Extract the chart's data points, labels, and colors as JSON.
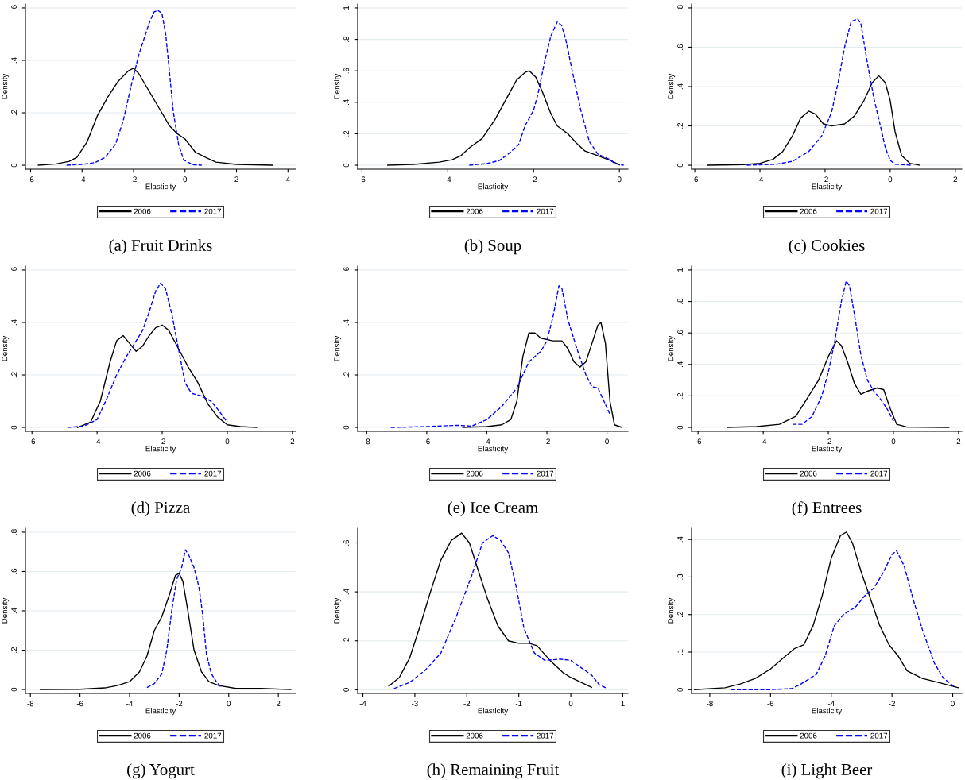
{
  "chart_data": [
    {
      "type": "line",
      "title": "(a) Fruit Drinks",
      "xlabel": "Elasticity",
      "ylabel": "Density",
      "grid": "y",
      "legend": "bottom",
      "xlim": [
        -6.2,
        4.3
      ],
      "xticks": [
        -6,
        -4,
        -2,
        0,
        2,
        4
      ],
      "ylim": [
        -0.015,
        0.615
      ],
      "yticks": [
        0,
        {
          "value": 0.2,
          "label": ".2"
        },
        {
          "value": 0.4,
          "label": ".4"
        },
        {
          "value": 0.6,
          "label": ".6"
        }
      ],
      "series": [
        {
          "name": "2006",
          "color": "#000000",
          "line_style": "solid",
          "x": [
            -5.7,
            -5,
            -4.5,
            -4.2,
            -3.8,
            -3.4,
            -3,
            -2.6,
            -2.4,
            -2.2,
            -2.0,
            -1.8,
            -1.5,
            -1.2,
            -0.9,
            -0.6,
            -0.3,
            0,
            0.4,
            0.8,
            1.2,
            2,
            3.4
          ],
          "values": [
            0,
            0.005,
            0.015,
            0.03,
            0.09,
            0.19,
            0.26,
            0.32,
            0.34,
            0.36,
            0.37,
            0.35,
            0.3,
            0.25,
            0.2,
            0.15,
            0.12,
            0.1,
            0.05,
            0.03,
            0.012,
            0.003,
            0
          ]
        },
        {
          "name": "2017",
          "color": "#0000ff",
          "line_style": "dashed",
          "x": [
            -4.6,
            -4,
            -3.5,
            -3.1,
            -2.7,
            -2.4,
            -2.1,
            -1.8,
            -1.6,
            -1.4,
            -1.2,
            -1.05,
            -0.9,
            -0.75,
            -0.6,
            -0.45,
            -0.25,
            -0.05,
            0.3,
            0.65
          ],
          "values": [
            0,
            0.003,
            0.01,
            0.03,
            0.08,
            0.17,
            0.3,
            0.42,
            0.48,
            0.54,
            0.585,
            0.59,
            0.58,
            0.5,
            0.35,
            0.2,
            0.08,
            0.02,
            0.002,
            0
          ]
        }
      ]
    },
    {
      "type": "line",
      "title": "(b) Soup",
      "xlabel": "Elasticity",
      "ylabel": "Density",
      "grid": "y",
      "legend": "bottom",
      "xlim": [
        -6.1,
        0.2
      ],
      "xticks": [
        -6,
        -4,
        -2,
        0
      ],
      "ylim": [
        -0.025,
        1.025
      ],
      "yticks": [
        0,
        {
          "value": 0.2,
          "label": ".2"
        },
        {
          "value": 0.4,
          "label": ".4"
        },
        {
          "value": 0.6,
          "label": ".6"
        },
        {
          "value": 0.8,
          "label": ".8"
        },
        1
      ],
      "series": [
        {
          "name": "2006",
          "color": "#000000",
          "line_style": "solid",
          "x": [
            -5.4,
            -4.8,
            -4.2,
            -3.9,
            -3.7,
            -3.5,
            -3.2,
            -2.9,
            -2.6,
            -2.4,
            -2.2,
            -2.1,
            -1.95,
            -1.8,
            -1.6,
            -1.45,
            -1.2,
            -1.0,
            -0.8,
            -0.5,
            -0.2,
            0
          ],
          "values": [
            0,
            0.005,
            0.02,
            0.035,
            0.06,
            0.11,
            0.17,
            0.29,
            0.44,
            0.54,
            0.59,
            0.6,
            0.56,
            0.47,
            0.33,
            0.25,
            0.2,
            0.14,
            0.09,
            0.06,
            0.03,
            0.003
          ]
        },
        {
          "name": "2017",
          "color": "#0000ff",
          "line_style": "dashed",
          "x": [
            -3.5,
            -3.1,
            -2.8,
            -2.6,
            -2.35,
            -2.2,
            -2.0,
            -1.9,
            -1.75,
            -1.6,
            -1.45,
            -1.35,
            -1.25,
            -1.1,
            -0.9,
            -0.7,
            -0.5,
            -0.25,
            -0.1,
            0.1
          ],
          "values": [
            0,
            0.01,
            0.03,
            0.07,
            0.13,
            0.25,
            0.35,
            0.45,
            0.65,
            0.82,
            0.91,
            0.89,
            0.8,
            0.6,
            0.35,
            0.15,
            0.07,
            0.04,
            0.01,
            0
          ]
        }
      ]
    },
    {
      "type": "line",
      "title": "(c) Cookies",
      "xlabel": "Elasticity",
      "ylabel": "Density",
      "grid": "y",
      "legend": "bottom",
      "xlim": [
        -6.1,
        2.2
      ],
      "xticks": [
        -6,
        -4,
        -2,
        0,
        2
      ],
      "ylim": [
        -0.02,
        0.82
      ],
      "yticks": [
        0,
        {
          "value": 0.2,
          "label": ".2"
        },
        {
          "value": 0.4,
          "label": ".4"
        },
        {
          "value": 0.6,
          "label": ".6"
        },
        {
          "value": 0.8,
          "label": ".8"
        }
      ],
      "series": [
        {
          "name": "2006",
          "color": "#000000",
          "line_style": "solid",
          "x": [
            -5.6,
            -4.5,
            -4,
            -3.6,
            -3.3,
            -3,
            -2.75,
            -2.5,
            -2.3,
            -2.05,
            -1.8,
            -1.4,
            -1.1,
            -0.8,
            -0.55,
            -0.35,
            -0.15,
            0,
            0.15,
            0.35,
            0.6,
            0.9
          ],
          "values": [
            0,
            0.003,
            0.01,
            0.03,
            0.07,
            0.15,
            0.24,
            0.275,
            0.26,
            0.21,
            0.2,
            0.21,
            0.25,
            0.33,
            0.42,
            0.455,
            0.42,
            0.33,
            0.17,
            0.05,
            0.01,
            0
          ]
        },
        {
          "name": "2017",
          "color": "#0000ff",
          "line_style": "dashed",
          "x": [
            -4.4,
            -3.5,
            -3,
            -2.5,
            -2.1,
            -1.8,
            -1.6,
            -1.4,
            -1.2,
            -1.0,
            -0.9,
            -0.7,
            -0.5,
            -0.3,
            -0.15,
            0,
            0.15,
            0.65
          ],
          "values": [
            0,
            0.005,
            0.02,
            0.07,
            0.15,
            0.27,
            0.42,
            0.6,
            0.73,
            0.745,
            0.72,
            0.52,
            0.34,
            0.2,
            0.09,
            0.025,
            0.005,
            0
          ]
        }
      ]
    },
    {
      "type": "line",
      "title": "(d) Pizza",
      "xlabel": "Elasticity",
      "ylabel": "Density",
      "grid": "y",
      "legend": "bottom",
      "xlim": [
        -6.2,
        2.1
      ],
      "xticks": [
        -6,
        -4,
        -2,
        0,
        2
      ],
      "ylim": [
        -0.015,
        0.615
      ],
      "yticks": [
        0,
        {
          "value": 0.2,
          "label": ".2"
        },
        {
          "value": 0.4,
          "label": ".4"
        },
        {
          "value": 0.6,
          "label": ".6"
        }
      ],
      "series": [
        {
          "name": "2006",
          "color": "#000000",
          "line_style": "solid",
          "x": [
            -4.6,
            -4.2,
            -3.9,
            -3.6,
            -3.4,
            -3.2,
            -3.0,
            -2.8,
            -2.6,
            -2.4,
            -2.2,
            -2.0,
            -1.8,
            -1.5,
            -1.2,
            -0.9,
            -0.6,
            -0.3,
            0,
            0.4,
            0.9
          ],
          "values": [
            0,
            0.02,
            0.1,
            0.25,
            0.33,
            0.35,
            0.32,
            0.29,
            0.31,
            0.35,
            0.38,
            0.39,
            0.37,
            0.3,
            0.23,
            0.17,
            0.09,
            0.04,
            0.01,
            0.003,
            0
          ]
        },
        {
          "name": "2017",
          "color": "#0000ff",
          "line_style": "dashed",
          "x": [
            -4.9,
            -4.4,
            -4.0,
            -3.7,
            -3.4,
            -3.1,
            -2.8,
            -2.6,
            -2.4,
            -2.2,
            -2.05,
            -1.9,
            -1.7,
            -1.5,
            -1.3,
            -1.1,
            -0.8,
            -0.5,
            -0.3,
            0
          ],
          "values": [
            0,
            0.005,
            0.03,
            0.11,
            0.2,
            0.27,
            0.33,
            0.37,
            0.44,
            0.52,
            0.55,
            0.53,
            0.43,
            0.3,
            0.17,
            0.13,
            0.12,
            0.1,
            0.07,
            0.02
          ]
        }
      ]
    },
    {
      "type": "line",
      "title": "(e) Ice Cream",
      "xlabel": "Elasticity",
      "ylabel": "Density",
      "grid": "y",
      "legend": "bottom",
      "xlim": [
        -8.3,
        0.7
      ],
      "xticks": [
        -8,
        -6,
        -4,
        -2,
        0
      ],
      "ylim": [
        -0.015,
        0.615
      ],
      "yticks": [
        0,
        {
          "value": 0.2,
          "label": ".2"
        },
        {
          "value": 0.4,
          "label": ".4"
        },
        {
          "value": 0.6,
          "label": ".6"
        }
      ],
      "series": [
        {
          "name": "2006",
          "color": "#000000",
          "line_style": "solid",
          "x": [
            -4.8,
            -4.0,
            -3.5,
            -3.2,
            -3.0,
            -2.8,
            -2.6,
            -2.4,
            -2.2,
            -1.8,
            -1.5,
            -1.3,
            -1.1,
            -0.9,
            -0.7,
            -0.5,
            -0.3,
            -0.2,
            -0.05,
            0.1,
            0.25,
            0.5
          ],
          "values": [
            0,
            0.003,
            0.01,
            0.03,
            0.1,
            0.27,
            0.36,
            0.36,
            0.34,
            0.33,
            0.33,
            0.3,
            0.25,
            0.23,
            0.25,
            0.32,
            0.39,
            0.4,
            0.32,
            0.1,
            0.01,
            0
          ]
        },
        {
          "name": "2017",
          "color": "#0000ff",
          "line_style": "dashed",
          "x": [
            -7.2,
            -6,
            -5,
            -4.5,
            -4,
            -3.5,
            -3,
            -2.6,
            -2.2,
            -2,
            -1.8,
            -1.6,
            -1.5,
            -1.3,
            -1.0,
            -0.7,
            -0.5,
            -0.3,
            -0.1,
            0.1
          ],
          "values": [
            0,
            0.003,
            0.008,
            0.005,
            0.03,
            0.08,
            0.15,
            0.25,
            0.29,
            0.33,
            0.42,
            0.54,
            0.53,
            0.41,
            0.3,
            0.2,
            0.155,
            0.15,
            0.1,
            0.05
          ]
        }
      ]
    },
    {
      "type": "line",
      "title": "(f) Entrees",
      "xlabel": "Elasticity",
      "ylabel": "Density",
      "grid": "y",
      "legend": "bottom",
      "xlim": [
        -6.2,
        2.1
      ],
      "xticks": [
        -6,
        -4,
        -2,
        0,
        2
      ],
      "ylim": [
        -0.025,
        1.025
      ],
      "yticks": [
        0,
        {
          "value": 0.2,
          "label": ".2"
        },
        {
          "value": 0.4,
          "label": ".4"
        },
        {
          "value": 0.6,
          "label": ".6"
        },
        {
          "value": 0.8,
          "label": ".8"
        },
        1
      ],
      "series": [
        {
          "name": "2006",
          "color": "#000000",
          "line_style": "solid",
          "x": [
            -5.1,
            -4.2,
            -3.5,
            -3.0,
            -2.6,
            -2.3,
            -2.0,
            -1.75,
            -1.6,
            -1.4,
            -1.2,
            -1.0,
            -0.8,
            -0.5,
            -0.3,
            -0.1,
            0.1,
            0.4,
            1.7
          ],
          "values": [
            0,
            0.005,
            0.02,
            0.07,
            0.2,
            0.3,
            0.45,
            0.55,
            0.52,
            0.41,
            0.28,
            0.21,
            0.23,
            0.25,
            0.24,
            0.12,
            0.02,
            0.003,
            0
          ]
        },
        {
          "name": "2017",
          "color": "#0000ff",
          "line_style": "dashed",
          "x": [
            -3.1,
            -2.8,
            -2.5,
            -2.2,
            -2.0,
            -1.8,
            -1.6,
            -1.45,
            -1.35,
            -1.2,
            -1.0,
            -0.8,
            -0.6,
            -0.4,
            -0.2,
            0
          ],
          "values": [
            0.02,
            0.02,
            0.07,
            0.2,
            0.35,
            0.55,
            0.8,
            0.93,
            0.9,
            0.72,
            0.46,
            0.3,
            0.23,
            0.18,
            0.12,
            0.04
          ]
        }
      ]
    },
    {
      "type": "line",
      "title": "(g) Yogurt",
      "xlabel": "Elasticity",
      "ylabel": "Density",
      "grid": "y",
      "legend": "bottom",
      "xlim": [
        -8.2,
        2.7
      ],
      "xticks": [
        -8,
        -6,
        -4,
        -2,
        0,
        2
      ],
      "ylim": [
        -0.02,
        0.82
      ],
      "yticks": [
        0,
        {
          "value": 0.2,
          "label": ".2"
        },
        {
          "value": 0.4,
          "label": ".4"
        },
        {
          "value": 0.6,
          "label": ".6"
        },
        {
          "value": 0.8,
          "label": ".8"
        }
      ],
      "series": [
        {
          "name": "2006",
          "color": "#000000",
          "line_style": "solid",
          "x": [
            -7.6,
            -6,
            -5,
            -4.5,
            -4.0,
            -3.6,
            -3.3,
            -3.0,
            -2.7,
            -2.4,
            -2.15,
            -2.0,
            -1.85,
            -1.65,
            -1.4,
            -1.1,
            -0.8,
            -0.4,
            0.3,
            1.3,
            2.5
          ],
          "values": [
            0,
            0.001,
            0.008,
            0.02,
            0.04,
            0.09,
            0.17,
            0.3,
            0.37,
            0.48,
            0.58,
            0.59,
            0.55,
            0.4,
            0.2,
            0.09,
            0.04,
            0.02,
            0.005,
            0.005,
            0
          ]
        },
        {
          "name": "2017",
          "color": "#0000ff",
          "line_style": "dashed",
          "x": [
            -3.3,
            -3.0,
            -2.7,
            -2.5,
            -2.3,
            -2.1,
            -1.9,
            -1.75,
            -1.6,
            -1.4,
            -1.2,
            -1.05,
            -0.9,
            -0.7,
            -0.5,
            -0.3
          ],
          "values": [
            0.01,
            0.03,
            0.08,
            0.2,
            0.4,
            0.56,
            0.62,
            0.71,
            0.68,
            0.62,
            0.52,
            0.38,
            0.18,
            0.08,
            0.04,
            0.01
          ]
        }
      ]
    },
    {
      "type": "line",
      "title": "(h) Remaining Fruit",
      "xlabel": "Elasticity",
      "ylabel": "Density",
      "grid": "y",
      "legend": "bottom",
      "xlim": [
        -4.1,
        1.1
      ],
      "xticks": [
        -4,
        -3,
        -2,
        -1,
        0,
        1
      ],
      "ylim": [
        -0.015,
        0.66
      ],
      "yticks": [
        0,
        {
          "value": 0.2,
          "label": ".2"
        },
        {
          "value": 0.4,
          "label": ".4"
        },
        {
          "value": 0.6,
          "label": ".6"
        }
      ],
      "series": [
        {
          "name": "2006",
          "color": "#000000",
          "line_style": "solid",
          "x": [
            -3.5,
            -3.3,
            -3.1,
            -2.9,
            -2.7,
            -2.5,
            -2.3,
            -2.1,
            -1.95,
            -1.8,
            -1.6,
            -1.4,
            -1.2,
            -1.0,
            -0.8,
            -0.65,
            -0.4,
            -0.15,
            0,
            0.2,
            0.4
          ],
          "values": [
            0.015,
            0.05,
            0.13,
            0.26,
            0.4,
            0.53,
            0.61,
            0.64,
            0.6,
            0.5,
            0.37,
            0.26,
            0.2,
            0.19,
            0.19,
            0.18,
            0.12,
            0.07,
            0.05,
            0.03,
            0.01
          ]
        },
        {
          "name": "2017",
          "color": "#0000ff",
          "line_style": "dashed",
          "x": [
            -3.4,
            -3.1,
            -2.8,
            -2.5,
            -2.2,
            -1.9,
            -1.7,
            -1.5,
            -1.35,
            -1.2,
            -1.05,
            -0.9,
            -0.7,
            -0.5,
            -0.2,
            0,
            0.2,
            0.4,
            0.55,
            0.7
          ],
          "values": [
            0.005,
            0.03,
            0.08,
            0.15,
            0.3,
            0.47,
            0.6,
            0.63,
            0.61,
            0.56,
            0.42,
            0.25,
            0.15,
            0.12,
            0.125,
            0.12,
            0.09,
            0.06,
            0.02,
            0.005
          ]
        }
      ]
    },
    {
      "type": "line",
      "title": "(i) Light Beer",
      "xlabel": "Elasticity",
      "ylabel": "Density",
      "grid": "y",
      "legend": "bottom",
      "xlim": [
        -8.6,
        0.3
      ],
      "xticks": [
        -8,
        -6,
        -4,
        -2,
        0
      ],
      "ylim": [
        -0.01,
        0.43
      ],
      "yticks": [
        0,
        {
          "value": 0.1,
          "label": ".1"
        },
        {
          "value": 0.2,
          "label": ".2"
        },
        {
          "value": 0.3,
          "label": ".3"
        },
        {
          "value": 0.4,
          "label": ".4"
        }
      ],
      "series": [
        {
          "name": "2006",
          "color": "#000000",
          "line_style": "solid",
          "x": [
            -8.5,
            -7.5,
            -7.0,
            -6.5,
            -6.0,
            -5.5,
            -5.2,
            -4.9,
            -4.6,
            -4.3,
            -4.0,
            -3.7,
            -3.5,
            -3.3,
            -3.0,
            -2.7,
            -2.4,
            -2.1,
            -1.8,
            -1.5,
            -1.0,
            -0.5,
            0.2
          ],
          "values": [
            0,
            0.005,
            0.015,
            0.03,
            0.055,
            0.09,
            0.11,
            0.12,
            0.17,
            0.25,
            0.35,
            0.41,
            0.42,
            0.39,
            0.31,
            0.24,
            0.17,
            0.12,
            0.09,
            0.05,
            0.03,
            0.02,
            0.005
          ]
        },
        {
          "name": "2017",
          "color": "#0000ff",
          "line_style": "dashed",
          "x": [
            -7.3,
            -6,
            -5.3,
            -5,
            -4.5,
            -4.2,
            -3.9,
            -3.6,
            -3.2,
            -2.9,
            -2.6,
            -2.3,
            -2.0,
            -1.85,
            -1.6,
            -1.3,
            -1.0,
            -0.6,
            -0.3,
            0.1
          ],
          "values": [
            0,
            0,
            0.003,
            0.015,
            0.04,
            0.09,
            0.17,
            0.2,
            0.22,
            0.25,
            0.27,
            0.31,
            0.36,
            0.37,
            0.33,
            0.24,
            0.16,
            0.07,
            0.03,
            0.005
          ]
        }
      ]
    }
  ]
}
